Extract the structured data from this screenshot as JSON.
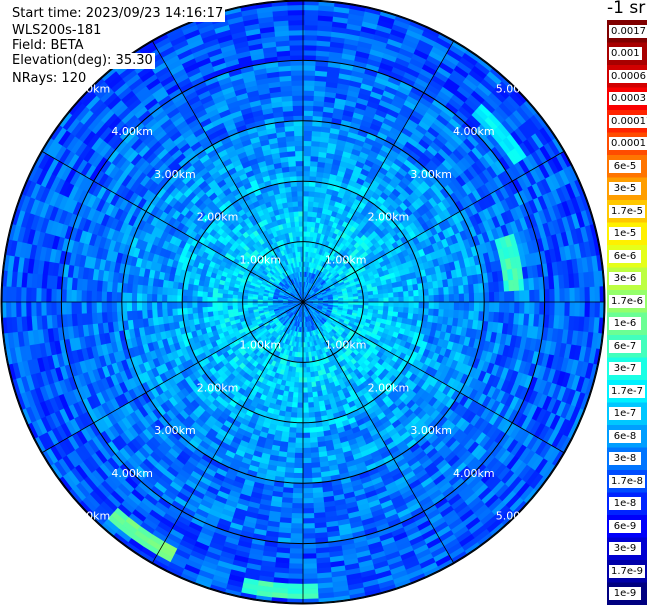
{
  "header": {
    "start_time": "Start time: 2023/09/23 14:16:17",
    "instrument": "WLS200s-181",
    "field": "Field: BETA",
    "elevation": "Elevation(deg): 35.30",
    "nrays": "NRays: 120"
  },
  "colorbar": {
    "unit_title": "-1 sr",
    "labels": [
      "0.0017",
      "0.001",
      "0.0006",
      "0.0003",
      "0.00017",
      "0.0001",
      "6e-5",
      "3e-5",
      "1.7e-5",
      "1e-5",
      "6e-6",
      "3e-6",
      "1.7e-6",
      "1e-6",
      "6e-7",
      "3e-7",
      "1.7e-7",
      "1e-7",
      "6e-8",
      "3e-8",
      "1.7e-8",
      "1e-8",
      "6e-9",
      "3e-9",
      "1.7e-9",
      "1e-9"
    ]
  },
  "chart_data": {
    "type": "heatmap",
    "subtype": "ppi-polar",
    "field": "BETA",
    "instrument": "WLS200s-181",
    "elevation_deg": 35.3,
    "nrays": 120,
    "range_rings_km": [
      1.0,
      2.0,
      3.0,
      4.0,
      5.0
    ],
    "ring_labels": [
      "1.00km",
      "2.00km",
      "3.00km",
      "4.00km",
      "5.00km"
    ],
    "max_range_km": 5.0,
    "radial_lines_deg": [
      0,
      30,
      60,
      90,
      120,
      150,
      180,
      210,
      240,
      270,
      300,
      330
    ],
    "colormap": "jet",
    "scale": "log",
    "color_range": [
      1e-09,
      0.0017
    ],
    "dominant_value_by_range": [
      {
        "range_km": [
          0.0,
          0.5
        ],
        "value": 4e-08
      },
      {
        "range_km": [
          0.5,
          1.5
        ],
        "value": 1.2e-07
      },
      {
        "range_km": [
          1.5,
          2.2
        ],
        "value": 8e-08
      },
      {
        "range_km": [
          2.2,
          3.0
        ],
        "value": 5e-08
      },
      {
        "range_km": [
          3.0,
          4.0
        ],
        "value": 3e-08
      },
      {
        "range_km": [
          4.0,
          5.0
        ],
        "value": 2e-08
      }
    ],
    "features": [
      {
        "azimuth_deg": 215,
        "range_km": 4.7,
        "value": 1e-06
      },
      {
        "azimuth_deg": 80,
        "range_km": 3.5,
        "value": 5e-07
      },
      {
        "azimuth_deg": 185,
        "range_km": 4.8,
        "value": 5e-07
      },
      {
        "azimuth_deg": 50,
        "range_km": 4.3,
        "value": 1.7e-07
      }
    ]
  }
}
